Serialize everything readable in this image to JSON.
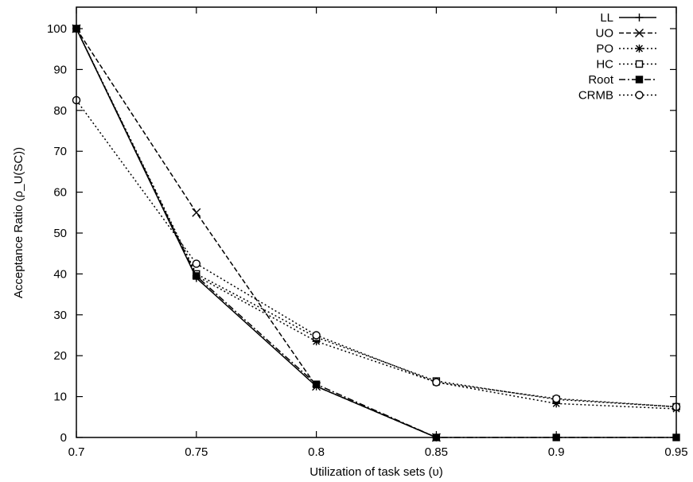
{
  "chart_data": {
    "type": "line",
    "xlabel": "Utilization of task sets (υ)",
    "ylabel": "Acceptance Ratio (ρ_U(SC))",
    "xlim": [
      0.7,
      0.95
    ],
    "ylim": [
      0,
      100
    ],
    "x_ticks": [
      "0.7",
      "0.75",
      "0.8",
      "0.85",
      "0.9",
      "0.95"
    ],
    "y_ticks": [
      "0",
      "10",
      "20",
      "30",
      "40",
      "50",
      "60",
      "70",
      "80",
      "90",
      "100"
    ],
    "grid": false,
    "legend_position": "top-right",
    "series": [
      {
        "name": "LL",
        "marker": "plus",
        "dash": "solid",
        "x": [
          0.7,
          0.75,
          0.8,
          0.85
        ],
        "y": [
          100,
          39,
          12.5,
          0
        ]
      },
      {
        "name": "UO",
        "marker": "x",
        "dash": "dashed",
        "x": [
          0.7,
          0.75,
          0.8,
          0.85
        ],
        "y": [
          100,
          55,
          12.5,
          0
        ]
      },
      {
        "name": "PO",
        "marker": "star",
        "dash": "dotted",
        "x": [
          0.7,
          0.75,
          0.8,
          0.85,
          0.9,
          0.95
        ],
        "y": [
          100,
          39.5,
          23.5,
          13.5,
          8.3,
          7
        ]
      },
      {
        "name": "HC",
        "marker": "open-square",
        "dash": "dotted",
        "x": [
          0.7,
          0.75,
          0.8,
          0.85,
          0.9,
          0.95
        ],
        "y": [
          100,
          40,
          24.5,
          13.8,
          9.3,
          7.5
        ]
      },
      {
        "name": "Root",
        "marker": "filled-square",
        "dash": "dashdot",
        "x": [
          0.7,
          0.75,
          0.8,
          0.85,
          0.9,
          0.95
        ],
        "y": [
          100,
          39.5,
          13,
          0,
          0,
          0
        ]
      },
      {
        "name": "CRMB",
        "marker": "circle",
        "dash": "dotted",
        "x": [
          0.7,
          0.75,
          0.8,
          0.85,
          0.9,
          0.95
        ],
        "y": [
          82.5,
          42.5,
          25,
          13.5,
          9.5,
          7.5
        ]
      }
    ]
  }
}
